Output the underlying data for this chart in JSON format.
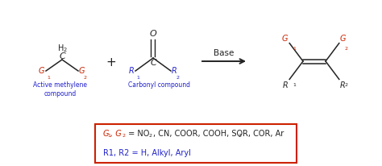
{
  "bg_color": "#ffffff",
  "red_color": "#cc2200",
  "blue_color": "#2222cc",
  "black_color": "#222222",
  "box_edge_color": "#cc2200",
  "label_active": "Active methylene\ncompound",
  "label_carbonyl": "Carbonyl compound",
  "base_label": "Base",
  "figsize": [
    4.74,
    2.07
  ],
  "dpi": 100
}
